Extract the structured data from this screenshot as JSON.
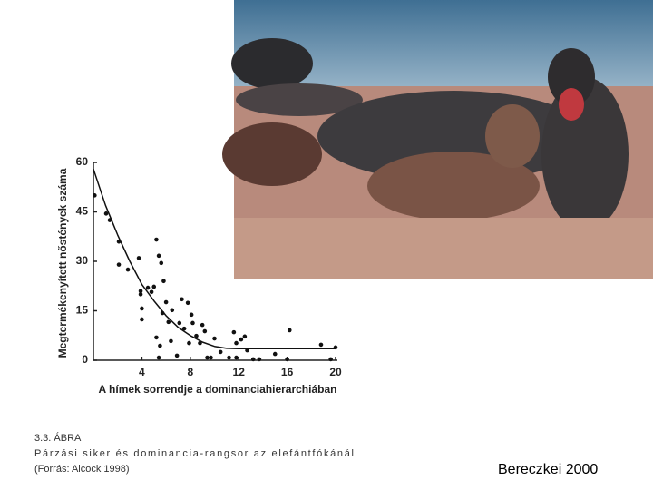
{
  "chart_data": {
    "type": "scatter",
    "xlabel": "A hímek sorrendje a dominanciahierarchiában",
    "ylabel": "Megtermékenyített nőstények száma",
    "xlim": [
      0,
      20
    ],
    "ylim": [
      0,
      60
    ],
    "xticks": [
      4,
      8,
      12,
      16,
      20
    ],
    "yticks": [
      0,
      15,
      30,
      45,
      60
    ],
    "color": "#111111",
    "points": {
      "x": [
        0.1,
        1.05,
        1.35,
        2.1,
        2.1,
        2.85,
        3.75,
        3.9,
        3.9,
        4.0,
        4.0,
        4.5,
        4.8,
        5.0,
        5.2,
        5.4,
        5.6,
        5.2,
        5.5,
        5.7,
        5.8,
        6.0,
        6.2,
        6.4,
        6.5,
        5.4,
        6.9,
        7.1,
        7.3,
        7.5,
        7.8,
        7.9,
        8.1,
        8.2,
        8.5,
        8.8,
        9.0,
        9.2,
        9.4,
        9.7,
        10.0,
        10.5,
        11.2,
        11.6,
        11.8,
        11.8,
        12.2,
        12.5,
        12.7,
        13.2,
        13.7,
        15.0,
        16.0,
        16.2,
        18.8,
        19.6,
        20.0
      ],
      "y": [
        50,
        44.5,
        42.5,
        36,
        29,
        27.5,
        31,
        21,
        20,
        15.7,
        12.4,
        22,
        20.7,
        22.3,
        36.6,
        31.7,
        29.5,
        6.9,
        4.4,
        14.3,
        24,
        17.6,
        11.6,
        5.8,
        15.2,
        0.8,
        1.4,
        11.3,
        18.5,
        9.6,
        17.4,
        5.2,
        13.8,
        11.3,
        7.4,
        5.2,
        10.7,
        8.8,
        0.8,
        0.8,
        6.6,
        2.5,
        0.8,
        8.5,
        5.2,
        0.8,
        6.3,
        7.2,
        3.0,
        0.3,
        0.3,
        1.9,
        0.3,
        9.1,
        4.7,
        0.3,
        3.9
      ]
    },
    "curve": {
      "x": [
        0,
        1,
        2,
        3,
        4,
        5,
        6,
        7,
        8,
        9,
        10,
        11,
        12,
        20
      ],
      "y": [
        58,
        47,
        38,
        30,
        23,
        18,
        13.5,
        10,
        7.5,
        5.5,
        4.2,
        3.6,
        3.5,
        3.5
      ]
    }
  },
  "caption": {
    "label": "3.3. ÁBRA",
    "text": "Párzási siker és dominancia-rangsor az elefántfókánál",
    "source": "(Forrás: Alcock 1998)"
  },
  "credit": "Bereczkei 2000"
}
